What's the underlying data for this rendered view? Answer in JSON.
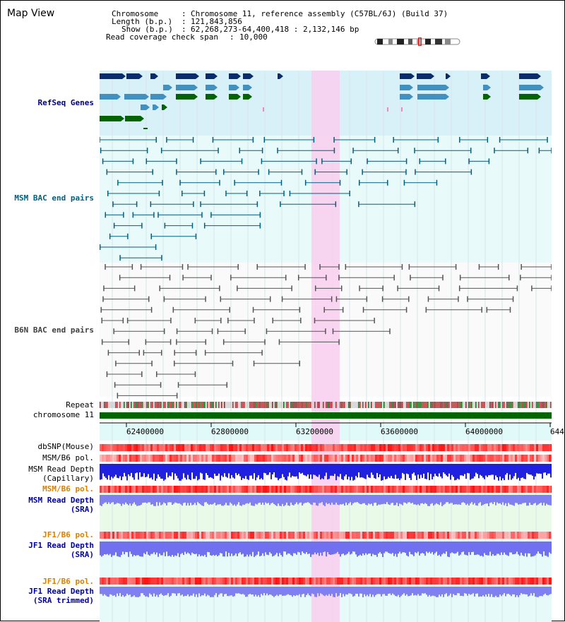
{
  "window": {
    "title": "Map View"
  },
  "info": {
    "chromosome_key": "Chromosome",
    "chromosome_val": "Chromosome 11, reference assembly (C57BL/6J) (Build 37)",
    "length_key": "Length (b.p.)",
    "length_val": "121,843,856",
    "show_key": "Show (b.p.)",
    "show_val": "62,268,273-64,400,418 : 2,132,146 bp",
    "span_key": "Read coverage check span",
    "span_val": "10,000"
  },
  "tracks": {
    "refseq": "RefSeq Genes",
    "msm_bac": "MSM BAC end pairs",
    "b6n_bac": "B6N BAC end pairs",
    "repeat": "Repeat",
    "chromosome": "chromosome 11",
    "dbsnp": "dbSNP(Mouse)",
    "msm_b6_pol": "MSM/B6 pol.",
    "msm_read_depth_cap_1": "MSM Read Depth",
    "msm_read_depth_cap_2": "(Capillary)",
    "msm_b6_pol_2": "MSM/B6 pol.",
    "msm_read_depth_sra_1": "MSM Read Depth",
    "msm_read_depth_sra_2": "(SRA)",
    "jf1_b6_pol": "JF1/B6 pol.",
    "jf1_read_depth_sra_1": "JF1 Read Depth",
    "jf1_read_depth_sra_2": "(SRA)",
    "jf1_b6_pol_2": "JF1/B6 pol.",
    "jf1_read_depth_trim_1": "JF1 Read Depth",
    "jf1_read_depth_trim_2": "(SRA trimmed)"
  },
  "axis": {
    "ticks": [
      "62400000",
      "62800000",
      "63200000",
      "63600000",
      "64000000",
      "644"
    ]
  },
  "colors": {
    "refseq_text": "#000080",
    "msm_text": "#006080",
    "b6n_text": "#404040",
    "orange_text": "#d98000",
    "blue_text": "#0000a0",
    "highlight": "#f8d0f0",
    "refseq_bg": "#d8f0f8",
    "chromosome_bar": "#006400"
  }
}
